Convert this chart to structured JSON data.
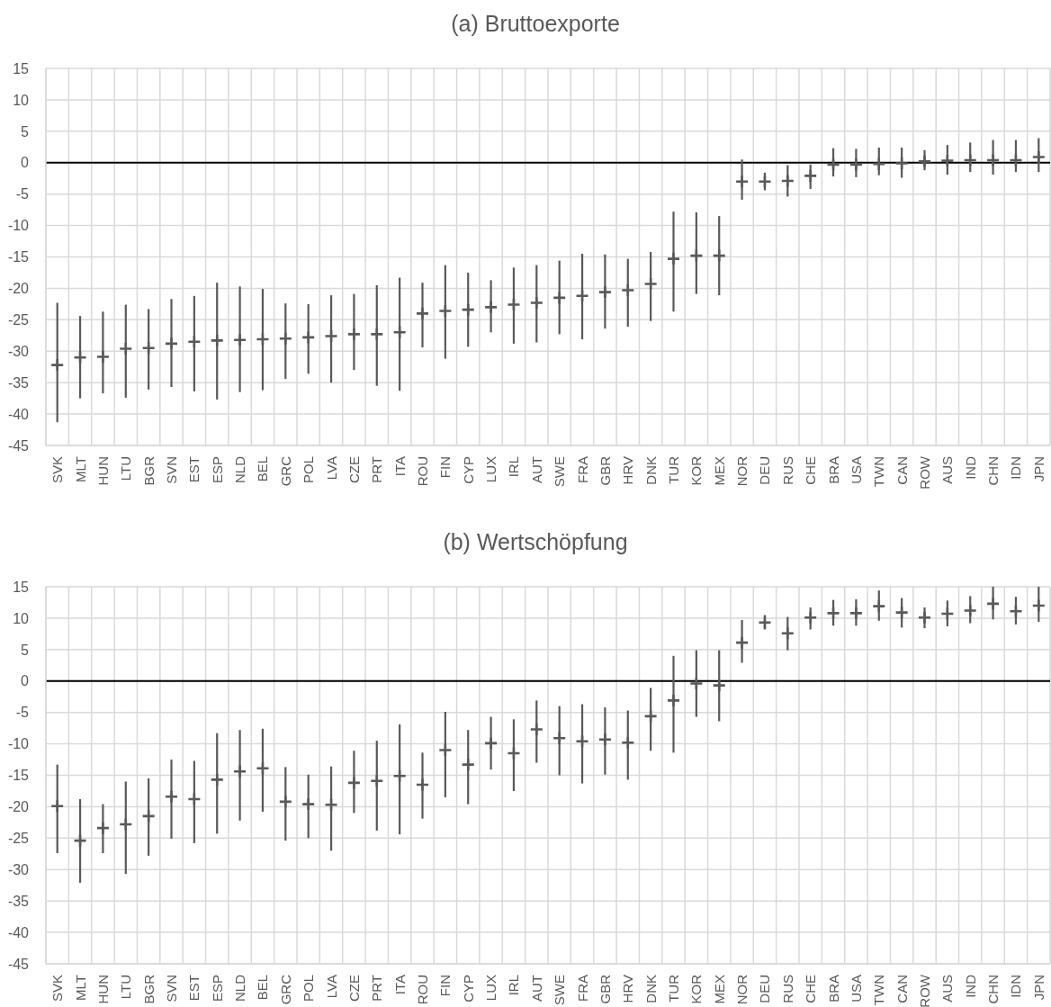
{
  "chart_data": [
    {
      "type": "scatter",
      "title": "(a) Bruttoexporte",
      "categories": [
        "SVK",
        "MLT",
        "HUN",
        "LTU",
        "BGR",
        "SVN",
        "EST",
        "ESP",
        "NLD",
        "BEL",
        "GRC",
        "POL",
        "LVA",
        "CZE",
        "PRT",
        "ITA",
        "ROU",
        "FIN",
        "CYP",
        "LUX",
        "IRL",
        "AUT",
        "SWE",
        "FRA",
        "GBR",
        "HRV",
        "DNK",
        "TUR",
        "KOR",
        "MEX",
        "NOR",
        "DEU",
        "RUS",
        "CHE",
        "BRA",
        "USA",
        "TWN",
        "CAN",
        "ROW",
        "AUS",
        "IND",
        "CHN",
        "IDN",
        "JPN"
      ],
      "values": [
        -32.2,
        -31.0,
        -30.9,
        -29.6,
        -29.5,
        -28.8,
        -28.5,
        -28.3,
        -28.2,
        -28.1,
        -28.0,
        -27.8,
        -27.6,
        -27.3,
        -27.3,
        -27.0,
        -24.0,
        -23.6,
        -23.4,
        -23.0,
        -22.6,
        -22.3,
        -21.5,
        -21.2,
        -20.6,
        -20.3,
        -19.3,
        -15.3,
        -14.8,
        -14.8,
        -3.0,
        -3.0,
        -2.9,
        -2.1,
        -0.3,
        -0.3,
        -0.2,
        -0.1,
        0.2,
        0.3,
        0.4,
        0.4,
        0.4,
        0.9
      ],
      "errors": [
        [
          -41.3,
          -22.3
        ],
        [
          -37.5,
          -24.4
        ],
        [
          -36.7,
          -23.7
        ],
        [
          -37.4,
          -22.6
        ],
        [
          -36.1,
          -23.3
        ],
        [
          -35.7,
          -21.7
        ],
        [
          -36.4,
          -21.2
        ],
        [
          -37.7,
          -19.1
        ],
        [
          -36.5,
          -19.7
        ],
        [
          -36.2,
          -20.1
        ],
        [
          -34.4,
          -22.4
        ],
        [
          -33.6,
          -22.5
        ],
        [
          -35.0,
          -21.1
        ],
        [
          -33.0,
          -20.9
        ],
        [
          -35.5,
          -19.5
        ],
        [
          -36.3,
          -18.3
        ],
        [
          -29.4,
          -19.1
        ],
        [
          -31.2,
          -16.3
        ],
        [
          -29.3,
          -17.5
        ],
        [
          -27.0,
          -18.7
        ],
        [
          -28.8,
          -16.7
        ],
        [
          -28.6,
          -16.3
        ],
        [
          -27.3,
          -15.6
        ],
        [
          -28.1,
          -14.5
        ],
        [
          -26.4,
          -14.6
        ],
        [
          -26.1,
          -15.3
        ],
        [
          -25.2,
          -14.2
        ],
        [
          -23.7,
          -7.8
        ],
        [
          -20.9,
          -7.9
        ],
        [
          -21.1,
          -8.5
        ],
        [
          -5.9,
          0.5
        ],
        [
          -4.4,
          -1.6
        ],
        [
          -5.4,
          -0.4
        ],
        [
          -4.2,
          -0.3
        ],
        [
          -2.2,
          2.3
        ],
        [
          -2.3,
          2.2
        ],
        [
          -2.0,
          2.4
        ],
        [
          -2.4,
          2.4
        ],
        [
          -1.2,
          2.0
        ],
        [
          -1.9,
          2.8
        ],
        [
          -1.5,
          3.2
        ],
        [
          -1.9,
          3.6
        ],
        [
          -1.5,
          3.6
        ],
        [
          -1.5,
          3.9
        ]
      ],
      "color": "#595959",
      "marker": "cross",
      "ylim": [
        -45,
        15
      ],
      "yticks": [
        -45,
        -40,
        -35,
        -30,
        -25,
        -20,
        -15,
        -10,
        -5,
        0,
        5,
        10,
        15
      ],
      "grid": true,
      "ref_lines": [
        {
          "axis": "y",
          "value": 0,
          "color": "#000000"
        }
      ]
    },
    {
      "type": "scatter",
      "title": "(b) Wertschöpfung",
      "categories": [
        "SVK",
        "MLT",
        "HUN",
        "LTU",
        "BGR",
        "SVN",
        "EST",
        "ESP",
        "NLD",
        "BEL",
        "GRC",
        "POL",
        "LVA",
        "CZE",
        "PRT",
        "ITA",
        "ROU",
        "FIN",
        "CYP",
        "LUX",
        "IRL",
        "AUT",
        "SWE",
        "FRA",
        "GBR",
        "HRV",
        "DNK",
        "TUR",
        "KOR",
        "MEX",
        "NOR",
        "DEU",
        "RUS",
        "CHE",
        "BRA",
        "USA",
        "TWN",
        "CAN",
        "ROW",
        "AUS",
        "IND",
        "CHN",
        "IDN",
        "JPN"
      ],
      "values": [
        -19.9,
        -25.4,
        -23.4,
        -22.8,
        -21.5,
        -18.4,
        -18.8,
        -15.7,
        -14.4,
        -13.9,
        -19.2,
        -19.6,
        -19.7,
        -16.2,
        -15.9,
        -15.1,
        -16.5,
        -11.0,
        -13.3,
        -9.9,
        -11.5,
        -7.7,
        -9.1,
        -9.6,
        -9.3,
        -9.8,
        -5.6,
        -3.1,
        -0.4,
        -0.7,
        6.1,
        9.3,
        7.6,
        10.1,
        10.8,
        10.8,
        11.9,
        10.9,
        10.1,
        10.7,
        11.2,
        12.3,
        11.1,
        12.0
      ],
      "errors": [
        [
          -27.4,
          -13.3
        ],
        [
          -32.1,
          -18.8
        ],
        [
          -27.4,
          -19.6
        ],
        [
          -30.7,
          -16.0
        ],
        [
          -27.8,
          -15.5
        ],
        [
          -25.1,
          -12.5
        ],
        [
          -25.8,
          -12.7
        ],
        [
          -24.3,
          -8.3
        ],
        [
          -22.2,
          -7.8
        ],
        [
          -20.8,
          -7.6
        ],
        [
          -25.4,
          -13.7
        ],
        [
          -25.0,
          -14.9
        ],
        [
          -27.0,
          -13.6
        ],
        [
          -21.0,
          -11.1
        ],
        [
          -23.8,
          -9.5
        ],
        [
          -24.4,
          -6.9
        ],
        [
          -21.9,
          -11.4
        ],
        [
          -18.5,
          -4.9
        ],
        [
          -19.6,
          -7.8
        ],
        [
          -14.1,
          -5.7
        ],
        [
          -17.5,
          -6.1
        ],
        [
          -13.0,
          -3.1
        ],
        [
          -15.0,
          -4.0
        ],
        [
          -16.3,
          -3.7
        ],
        [
          -14.9,
          -4.2
        ],
        [
          -15.7,
          -4.7
        ],
        [
          -11.1,
          -1.1
        ],
        [
          -11.4,
          4.0
        ],
        [
          -5.7,
          4.9
        ],
        [
          -6.4,
          4.9
        ],
        [
          2.9,
          9.7
        ],
        [
          8.2,
          10.5
        ],
        [
          4.9,
          10.2
        ],
        [
          8.2,
          11.7
        ],
        [
          8.8,
          12.9
        ],
        [
          8.8,
          13.0
        ],
        [
          9.6,
          14.4
        ],
        [
          8.5,
          13.2
        ],
        [
          8.4,
          11.7
        ],
        [
          8.7,
          12.8
        ],
        [
          9.2,
          13.5
        ],
        [
          9.8,
          15.0
        ],
        [
          9.0,
          13.4
        ],
        [
          9.4,
          15.0
        ]
      ],
      "color": "#595959",
      "marker": "cross",
      "ylim": [
        -45,
        15
      ],
      "yticks": [
        -45,
        -40,
        -35,
        -30,
        -25,
        -20,
        -15,
        -10,
        -5,
        0,
        5,
        10,
        15
      ],
      "grid": true,
      "ref_lines": [
        {
          "axis": "y",
          "value": 0,
          "color": "#000000"
        }
      ]
    }
  ]
}
